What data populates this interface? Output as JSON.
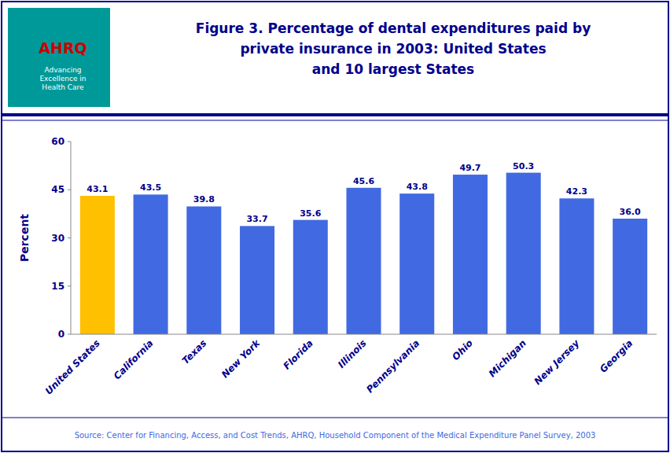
{
  "chart_data": {
    "type": "bar",
    "title": "Figure 3.  Percentage of dental expenditures paid by\nprivate insurance in 2003: United States\nand 10 largest States",
    "ylabel": "Percent",
    "categories": [
      "United States",
      "California",
      "Texas",
      "New York",
      "Florida",
      "Illinois",
      "Pennsylvania",
      "Ohio",
      "Michigan",
      "New Jersey",
      "Georgia"
    ],
    "values": [
      43.1,
      43.5,
      39.8,
      33.7,
      35.6,
      45.6,
      43.8,
      49.7,
      50.3,
      42.3,
      36.0
    ],
    "value_labels": [
      "43.1",
      "43.5",
      "39.8",
      "33.7",
      "35.6",
      "45.6",
      "43.8",
      "49.7",
      "50.3",
      "42.3",
      "36.0"
    ],
    "colors": [
      "#FFC000",
      "#4169E1",
      "#4169E1",
      "#4169E1",
      "#4169E1",
      "#4169E1",
      "#4169E1",
      "#4169E1",
      "#4169E1",
      "#4169E1",
      "#4169E1"
    ],
    "ylim": [
      0,
      60
    ],
    "yticks": [
      0,
      15,
      30,
      45,
      60
    ],
    "grid": false,
    "data_labels": true,
    "annotations": [
      "Source: Center for Financing, Access, and Cost Trends, AHRQ, Household Component of the Medical Expenditure Panel Survey, 2003",
      "AHRQ",
      "Advancing\nExcellence in\nHealth Care"
    ]
  }
}
